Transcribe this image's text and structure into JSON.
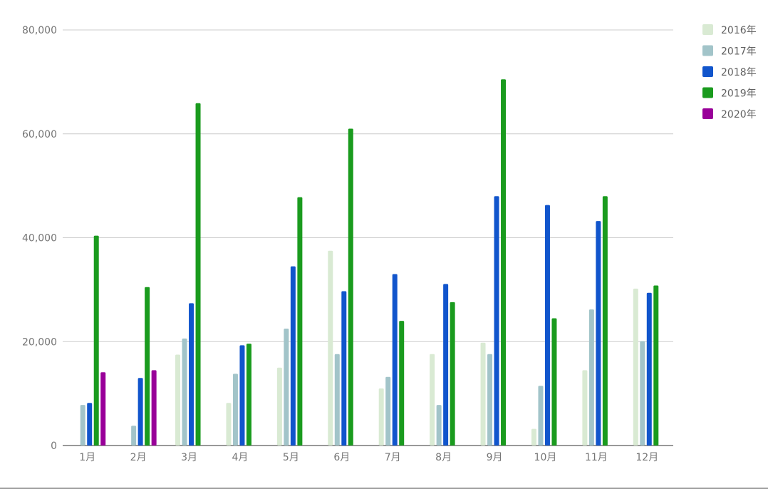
{
  "chart_data": {
    "type": "bar",
    "title": "",
    "xlabel": "",
    "ylabel": "",
    "categories": [
      "1月",
      "2月",
      "3月",
      "4月",
      "5月",
      "6月",
      "7月",
      "8月",
      "9月",
      "10月",
      "11月",
      "12月"
    ],
    "ylim": [
      0,
      80000
    ],
    "yticks": [
      0,
      20000,
      40000,
      60000,
      80000
    ],
    "ytick_labels": [
      "0",
      "20,000",
      "40,000",
      "60,000",
      "80,000"
    ],
    "grid": true,
    "legend_position": "right",
    "series": [
      {
        "name": "2016年",
        "color": "#d9ead3",
        "values": [
          null,
          null,
          17500,
          8200,
          15000,
          37500,
          11000,
          17600,
          19800,
          3200,
          14500,
          30200
        ]
      },
      {
        "name": "2017年",
        "color": "#a2c4c9",
        "values": [
          7800,
          3800,
          20600,
          13800,
          22500,
          17600,
          13200,
          7800,
          17600,
          11500,
          26200,
          20100
        ]
      },
      {
        "name": "2018年",
        "color": "#1155cc",
        "values": [
          8200,
          13000,
          27400,
          19300,
          34500,
          29700,
          33000,
          31100,
          48000,
          46300,
          43200,
          29400
        ]
      },
      {
        "name": "2019年",
        "color": "#1a9b1e",
        "values": [
          40400,
          30500,
          65900,
          19600,
          47800,
          61000,
          24000,
          27600,
          70500,
          24500,
          48000,
          30800
        ]
      },
      {
        "name": "2020年",
        "color": "#990099",
        "values": [
          14100,
          14500,
          null,
          null,
          null,
          null,
          null,
          null,
          null,
          null,
          null,
          null
        ]
      }
    ]
  }
}
